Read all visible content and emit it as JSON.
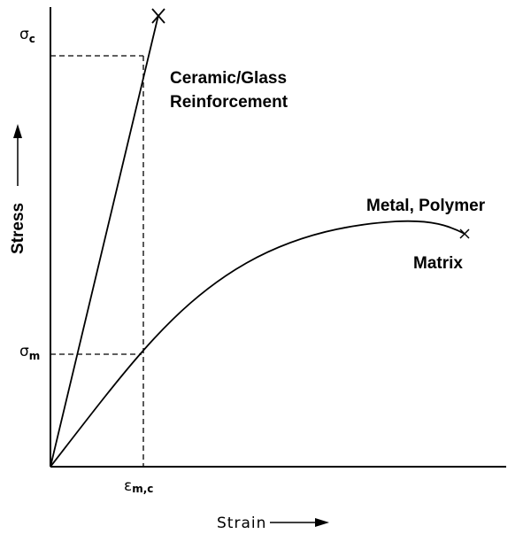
{
  "axes": {
    "y_label": "Stress",
    "x_label": "Strain"
  },
  "markers": {
    "sigma_c": {
      "symbol": "σ",
      "subscript": "c"
    },
    "sigma_m": {
      "symbol": "σ",
      "subscript": "m"
    },
    "epsilon_mc": {
      "symbol": "ε",
      "subscript": "m,c"
    }
  },
  "curves": {
    "reinforcement": {
      "line1": "Ceramic/Glass",
      "line2": "Reinforcement"
    },
    "matrix": {
      "line1": "Metal, Polymer",
      "line2": "Matrix"
    }
  }
}
